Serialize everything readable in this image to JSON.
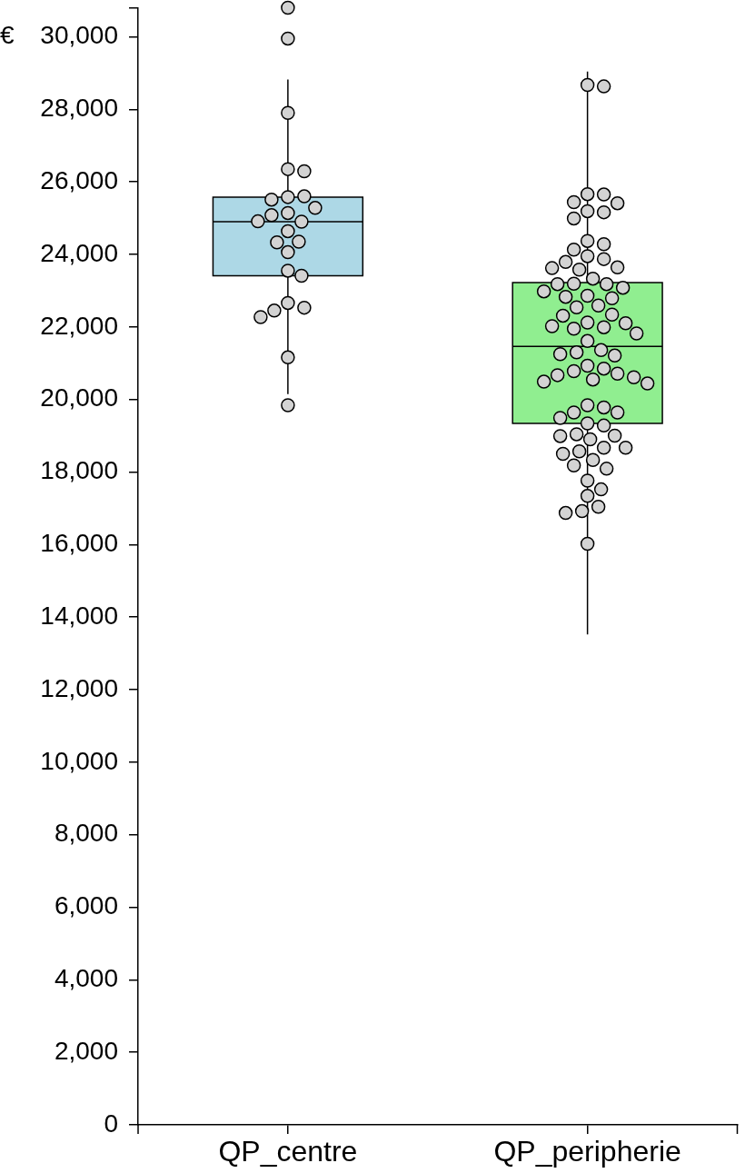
{
  "chart_data": {
    "type": "box",
    "ylabel": "€",
    "categories": [
      "QP_centre",
      "QP_peripherie"
    ],
    "boxes": [
      {
        "low": 20150,
        "q1": 23410,
        "median": 24900,
        "q3": 25580,
        "high": 28820
      },
      {
        "low": 13520,
        "q1": 19340,
        "median": 21460,
        "q3": 23220,
        "high": 29040
      }
    ],
    "colors": [
      "#add8e6",
      "#90ee90"
    ],
    "ylim": [
      0,
      30800
    ],
    "yticks": [
      0,
      {
        "value": 2000,
        "label": "2,000"
      },
      {
        "value": 4000,
        "label": "4,000"
      },
      {
        "value": 6000,
        "label": "6,000"
      },
      {
        "value": 8000,
        "label": "8,000"
      },
      {
        "value": 10000,
        "label": "10,000"
      },
      {
        "value": 12000,
        "label": "12,000"
      },
      {
        "value": 14000,
        "label": "14,000"
      },
      {
        "value": 16000,
        "label": "16,000"
      },
      {
        "value": 18000,
        "label": "18,000"
      },
      {
        "value": 20000,
        "label": "20,000"
      },
      {
        "value": 22000,
        "label": "22,000"
      },
      {
        "value": 24000,
        "label": "24,000"
      },
      {
        "value": 26000,
        "label": "26,000"
      },
      {
        "value": 28000,
        "label": "28,000"
      },
      {
        "value": 30000,
        "label": "30,000"
      },
      {
        "value": 30800,
        "label": null
      }
    ],
    "marker": "circle",
    "series": [
      {
        "type": "scatter",
        "color": "#d3d3d3",
        "x": [
          "QP_centre",
          "QP_centre",
          "QP_centre",
          "QP_centre",
          "QP_centre",
          "QP_centre",
          "QP_centre",
          "QP_centre",
          "QP_centre",
          "QP_centre",
          "QP_centre",
          "QP_centre",
          "QP_centre",
          "QP_centre",
          "QP_centre",
          "QP_centre",
          "QP_centre",
          "QP_centre",
          "QP_centre",
          "QP_centre",
          "QP_centre",
          "QP_centre",
          "QP_centre",
          "QP_centre",
          "QP_centre",
          "QP_peripherie",
          "QP_peripherie",
          "QP_peripherie",
          "QP_peripherie",
          "QP_peripherie",
          "QP_peripherie",
          "QP_peripherie",
          "QP_peripherie",
          "QP_peripherie",
          "QP_peripherie",
          "QP_peripherie",
          "QP_peripherie",
          "QP_peripherie",
          "QP_peripherie",
          "QP_peripherie",
          "QP_peripherie",
          "QP_peripherie",
          "QP_peripherie",
          "QP_peripherie",
          "QP_peripherie",
          "QP_peripherie",
          "QP_peripherie",
          "QP_peripherie",
          "QP_peripherie",
          "QP_peripherie",
          "QP_peripherie",
          "QP_peripherie",
          "QP_peripherie",
          "QP_peripherie",
          "QP_peripherie",
          "QP_peripherie",
          "QP_peripherie",
          "QP_peripherie",
          "QP_peripherie",
          "QP_peripherie",
          "QP_peripherie",
          "QP_peripherie",
          "QP_peripherie",
          "QP_peripherie",
          "QP_peripherie",
          "QP_peripherie",
          "QP_peripherie",
          "QP_peripherie",
          "QP_peripherie",
          "QP_peripherie",
          "QP_peripherie",
          "QP_peripherie",
          "QP_peripherie",
          "QP_peripherie",
          "QP_peripherie",
          "QP_peripherie",
          "QP_peripherie",
          "QP_peripherie",
          "QP_peripherie",
          "QP_peripherie",
          "QP_peripherie",
          "QP_peripherie",
          "QP_peripherie",
          "QP_peripherie",
          "QP_peripherie",
          "QP_peripherie",
          "QP_peripherie",
          "QP_peripherie",
          "QP_peripherie",
          "QP_peripherie",
          "QP_peripherie",
          "QP_peripherie",
          "QP_peripherie",
          "QP_peripherie",
          "QP_peripherie",
          "QP_peripherie",
          "QP_peripherie",
          "QP_peripherie",
          "QP_peripherie",
          "QP_peripherie",
          "QP_peripherie"
        ],
        "values": [
          30800,
          29950,
          27900,
          26350,
          26290,
          25580,
          25600,
          25510,
          25280,
          25140,
          25080,
          24900,
          24910,
          24640,
          24350,
          24330,
          24060,
          23550,
          23410,
          22660,
          22530,
          22450,
          22270,
          21160,
          19840,
          28670,
          28630,
          25660,
          25650,
          25440,
          25410,
          25190,
          25160,
          24990,
          24370,
          24280,
          24130,
          23950,
          23870,
          23790,
          23640,
          23620,
          23580,
          23330,
          23190,
          23180,
          23180,
          23080,
          22980,
          22860,
          22830,
          22790,
          22590,
          22540,
          22340,
          22310,
          22120,
          22100,
          21990,
          22020,
          21950,
          21820,
          21610,
          21360,
          21300,
          21250,
          21210,
          20930,
          20850,
          20780,
          20710,
          20670,
          20610,
          20550,
          20490,
          20440,
          19840,
          19780,
          19640,
          19640,
          19490,
          19340,
          19280,
          19040,
          19000,
          18990,
          18900,
          18670,
          18670,
          18570,
          18500,
          18330,
          18180,
          18090,
          17760,
          17520,
          17340,
          17040,
          16920,
          16870,
          16020
        ]
      }
    ]
  }
}
